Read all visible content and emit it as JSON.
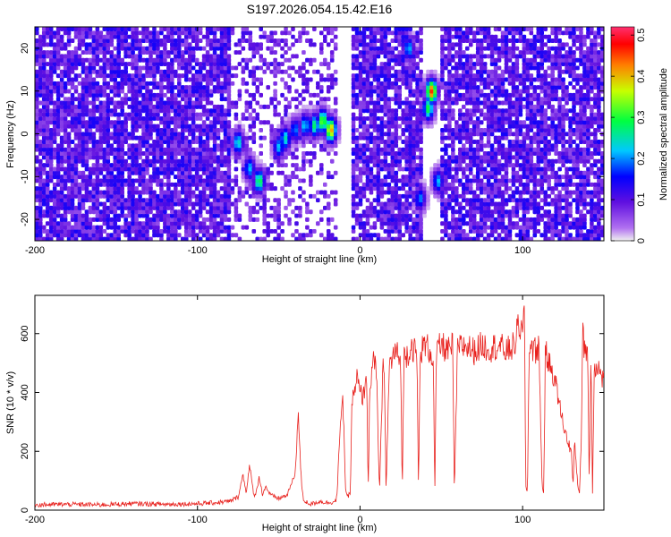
{
  "title": "S197.2026.054.15.42.E16",
  "chart_data": [
    {
      "type": "heatmap",
      "xlabel": "Height of straight line (km)",
      "ylabel": "Frequency (Hz)",
      "xlim": [
        -200,
        150
      ],
      "ylim": [
        -25,
        25
      ],
      "xticks": [
        -200,
        -100,
        0,
        100
      ],
      "yticks": [
        -20,
        -10,
        0,
        10,
        20
      ],
      "colorbar": {
        "label": "Normalized spectral amplitude",
        "range": [
          0,
          0.52
        ],
        "ticks": [
          0,
          0.1,
          0.2,
          0.3,
          0.4,
          0.5
        ],
        "colors": [
          "#f0f0f0",
          "#7a1fe0",
          "#0000ff",
          "#00c8ff",
          "#00ff40",
          "#c8ff00",
          "#ff8000",
          "#ff0000",
          "#ff3070"
        ]
      },
      "bands": [
        {
          "x_from": -200,
          "x_to": -80,
          "density": 0.85,
          "amp": 0.12
        },
        {
          "x_from": -80,
          "x_to": -15,
          "density": 0.35,
          "amp": 0.1
        },
        {
          "x_from": -15,
          "x_to": -5,
          "density": 0.0,
          "amp": 0.0
        },
        {
          "x_from": -5,
          "x_to": 38,
          "density": 0.8,
          "amp": 0.12
        },
        {
          "x_from": 38,
          "x_to": 50,
          "density": 0.0,
          "amp": 0.0
        },
        {
          "x_from": 50,
          "x_to": 150,
          "density": 0.8,
          "amp": 0.12
        }
      ],
      "hotspots": [
        {
          "x": -75,
          "y": -2,
          "amp": 0.25
        },
        {
          "x": -68,
          "y": -8,
          "amp": 0.22
        },
        {
          "x": -62,
          "y": -11,
          "amp": 0.3
        },
        {
          "x": -50,
          "y": -3,
          "amp": 0.22
        },
        {
          "x": -46,
          "y": -1,
          "amp": 0.25
        },
        {
          "x": -40,
          "y": 1,
          "amp": 0.2
        },
        {
          "x": -34,
          "y": 2,
          "amp": 0.23
        },
        {
          "x": -28,
          "y": 2,
          "amp": 0.28
        },
        {
          "x": -23,
          "y": 3,
          "amp": 0.34
        },
        {
          "x": -18,
          "y": 1,
          "amp": 0.42
        },
        {
          "x": 30,
          "y": 20,
          "amp": 0.22
        },
        {
          "x": 37,
          "y": -15,
          "amp": 0.2
        },
        {
          "x": 42,
          "y": 6,
          "amp": 0.3
        },
        {
          "x": 44,
          "y": 10,
          "amp": 0.46
        },
        {
          "x": 48,
          "y": -11,
          "amp": 0.22
        }
      ]
    },
    {
      "type": "line",
      "xlabel": "Height of straight line (km)",
      "ylabel": "SNR (10 * v/v)",
      "xlim": [
        -200,
        150
      ],
      "ylim": [
        0,
        730
      ],
      "xticks": [
        -200,
        -100,
        0,
        100
      ],
      "yticks": [
        0,
        200,
        400,
        600
      ],
      "color": "#e8201c",
      "series": [
        {
          "x": [
            -200,
            -180,
            -160,
            -140,
            -120,
            -100,
            -90,
            -80,
            -75,
            -72,
            -70,
            -68,
            -65,
            -62,
            -60,
            -58,
            -55,
            -50,
            -45,
            -40,
            -38,
            -37,
            -36,
            -35,
            -34,
            -32,
            -30,
            -25,
            -20,
            -15,
            -14,
            -13,
            -12,
            -11,
            -10,
            -9,
            -8,
            -6,
            -5,
            -4,
            -3,
            -2,
            -1,
            0,
            2,
            4,
            5,
            6,
            8,
            10,
            12,
            14,
            15,
            16,
            18,
            20,
            22,
            25,
            26,
            27,
            30,
            32,
            35,
            36,
            37,
            40,
            42,
            45,
            46,
            47,
            50,
            55,
            57,
            58,
            60,
            65,
            70,
            75,
            80,
            85,
            90,
            95,
            98,
            100,
            101,
            102,
            103,
            104,
            105,
            108,
            110,
            112,
            113,
            114,
            116,
            118,
            120,
            122,
            124,
            126,
            128,
            130,
            131,
            132,
            134,
            135,
            136,
            137,
            138,
            140,
            141,
            142,
            143,
            144,
            146,
            148,
            150
          ],
          "y": [
            18,
            20,
            18,
            22,
            20,
            22,
            25,
            30,
            45,
            120,
            60,
            150,
            40,
            110,
            55,
            80,
            50,
            40,
            50,
            120,
            330,
            200,
            90,
            40,
            30,
            25,
            20,
            30,
            25,
            30,
            60,
            200,
            280,
            400,
            300,
            80,
            40,
            60,
            350,
            420,
            380,
            460,
            420,
            400,
            380,
            480,
            60,
            420,
            500,
            480,
            60,
            470,
            500,
            60,
            490,
            520,
            540,
            500,
            60,
            520,
            540,
            560,
            520,
            60,
            540,
            560,
            550,
            520,
            60,
            540,
            560,
            540,
            560,
            60,
            550,
            560,
            540,
            560,
            550,
            560,
            540,
            560,
            640,
            580,
            700,
            80,
            60,
            560,
            560,
            540,
            560,
            80,
            60,
            540,
            500,
            480,
            440,
            380,
            320,
            270,
            230,
            200,
            80,
            230,
            80,
            60,
            230,
            590,
            560,
            540,
            80,
            550,
            60,
            480,
            500,
            460,
            440
          ]
        }
      ]
    }
  ]
}
